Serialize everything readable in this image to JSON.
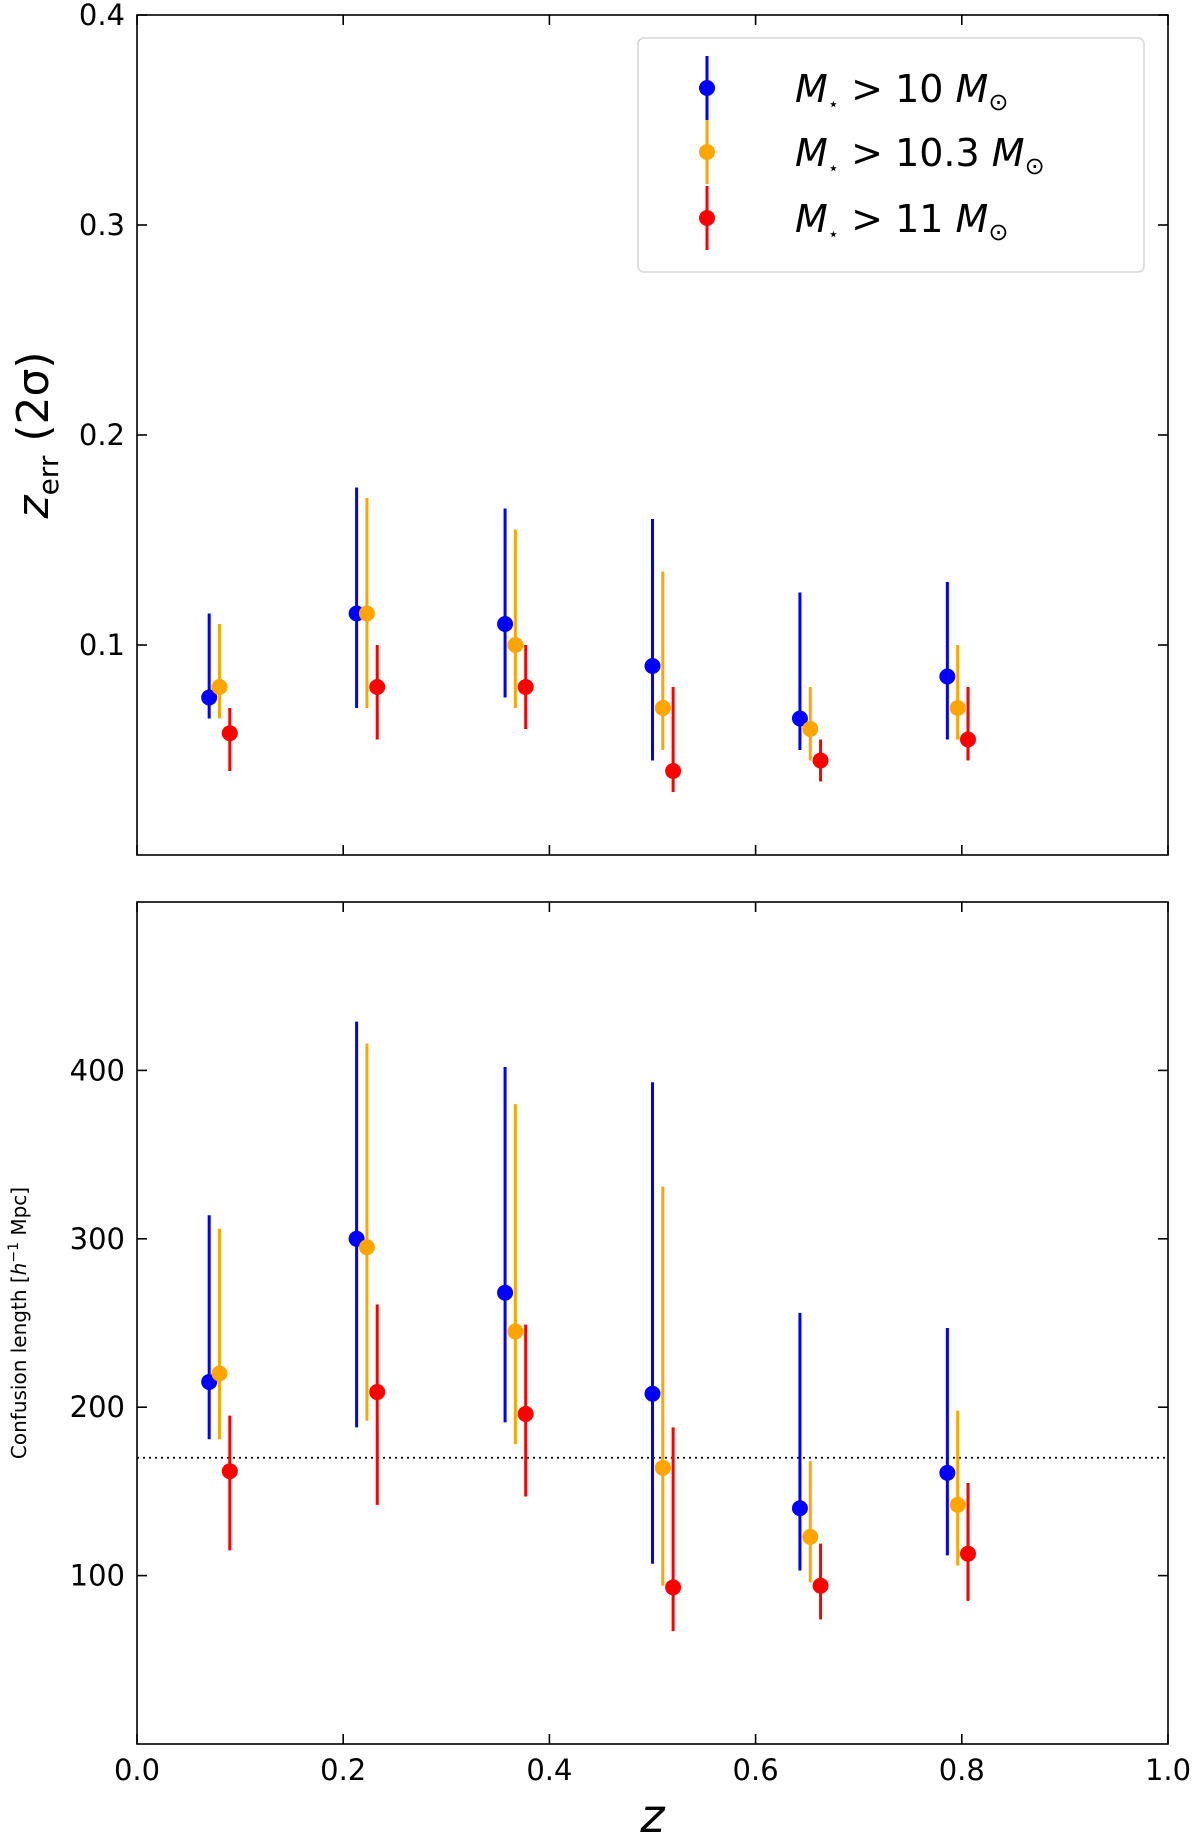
{
  "chart_data": [
    {
      "type": "scatter",
      "panel": "top",
      "ylabel_main": "z",
      "ylabel_sub": "err",
      "ylabel_suffix": " (2σ)",
      "xlim": [
        0.0,
        1.0
      ],
      "ylim": [
        0.0,
        0.4
      ],
      "yticks": [
        0.1,
        0.2,
        0.3,
        0.4
      ],
      "ytick_labels": [
        "0.1",
        "0.2",
        "0.3",
        "0.4"
      ],
      "xticks": [
        0.2,
        0.4,
        0.6,
        0.8
      ],
      "legend_position": "top-right",
      "series": [
        {
          "name": "M⋆ > 10 M⊙",
          "legend": {
            "m": "M",
            "star": "⋆",
            "rel": " > 10 ",
            "unit": "M",
            "sun": "⊙"
          },
          "color": "#0000ff",
          "x": [
            0.07,
            0.213,
            0.357,
            0.5,
            0.643,
            0.786
          ],
          "y": [
            0.075,
            0.115,
            0.11,
            0.09,
            0.065,
            0.085
          ],
          "y_low": [
            0.065,
            0.07,
            0.075,
            0.045,
            0.05,
            0.055
          ],
          "y_high": [
            0.115,
            0.175,
            0.165,
            0.16,
            0.125,
            0.13
          ]
        },
        {
          "name": "M⋆ > 10.3 M⊙",
          "legend": {
            "m": "M",
            "star": "⋆",
            "rel": " > 10.3 ",
            "unit": "M",
            "sun": "⊙"
          },
          "color": "#ffa500",
          "x": [
            0.08,
            0.223,
            0.367,
            0.51,
            0.653,
            0.796
          ],
          "y": [
            0.08,
            0.115,
            0.1,
            0.07,
            0.06,
            0.07
          ],
          "y_low": [
            0.065,
            0.07,
            0.07,
            0.05,
            0.045,
            0.055
          ],
          "y_high": [
            0.11,
            0.17,
            0.155,
            0.135,
            0.08,
            0.1
          ]
        },
        {
          "name": "M⋆ > 11 M⊙",
          "legend": {
            "m": "M",
            "star": "⋆",
            "rel": " > 11 ",
            "unit": "M",
            "sun": "⊙"
          },
          "color": "#ff0000",
          "x": [
            0.09,
            0.233,
            0.377,
            0.52,
            0.663,
            0.806
          ],
          "y": [
            0.058,
            0.08,
            0.08,
            0.04,
            0.045,
            0.055
          ],
          "y_low": [
            0.04,
            0.055,
            0.06,
            0.03,
            0.035,
            0.045
          ],
          "y_high": [
            0.07,
            0.1,
            0.1,
            0.08,
            0.055,
            0.08
          ]
        }
      ]
    },
    {
      "type": "scatter",
      "panel": "bottom",
      "ylabel_pre": "Confusion length [",
      "ylabel_h": "h",
      "ylabel_exp": "−1",
      "ylabel_post": " Mpc]",
      "xlabel": "z",
      "xlim": [
        0.0,
        1.0
      ],
      "ylim": [
        0,
        500
      ],
      "xticks": [
        0.0,
        0.2,
        0.4,
        0.6,
        0.8,
        1.0
      ],
      "xtick_labels": [
        "0.0",
        "0.2",
        "0.4",
        "0.6",
        "0.8",
        "1.0"
      ],
      "yticks": [
        100,
        200,
        300,
        400
      ],
      "ytick_labels": [
        "100",
        "200",
        "300",
        "400"
      ],
      "reference_line_y": 170,
      "series": [
        {
          "name": "M⋆ > 10 M⊙",
          "color": "#0000ff",
          "x": [
            0.07,
            0.213,
            0.357,
            0.5,
            0.643,
            0.786
          ],
          "y": [
            215,
            300,
            268,
            208,
            140,
            161
          ],
          "y_low": [
            181,
            188,
            191,
            107,
            103,
            112
          ],
          "y_high": [
            314,
            429,
            402,
            393,
            256,
            247
          ]
        },
        {
          "name": "M⋆ > 10.3 M⊙",
          "color": "#ffa500",
          "x": [
            0.08,
            0.223,
            0.367,
            0.51,
            0.653,
            0.796
          ],
          "y": [
            220,
            295,
            245,
            164,
            123,
            142
          ],
          "y_low": [
            181,
            192,
            178,
            94,
            96,
            106
          ],
          "y_high": [
            306,
            416,
            380,
            331,
            168,
            198
          ]
        },
        {
          "name": "M⋆ > 11 M⊙",
          "color": "#ff0000",
          "x": [
            0.09,
            0.233,
            0.377,
            0.52,
            0.663,
            0.806
          ],
          "y": [
            162,
            209,
            196,
            93,
            94,
            113
          ],
          "y_low": [
            115,
            142,
            147,
            67,
            74,
            85
          ],
          "y_high": [
            195,
            261,
            249,
            188,
            119,
            155
          ]
        }
      ]
    }
  ]
}
